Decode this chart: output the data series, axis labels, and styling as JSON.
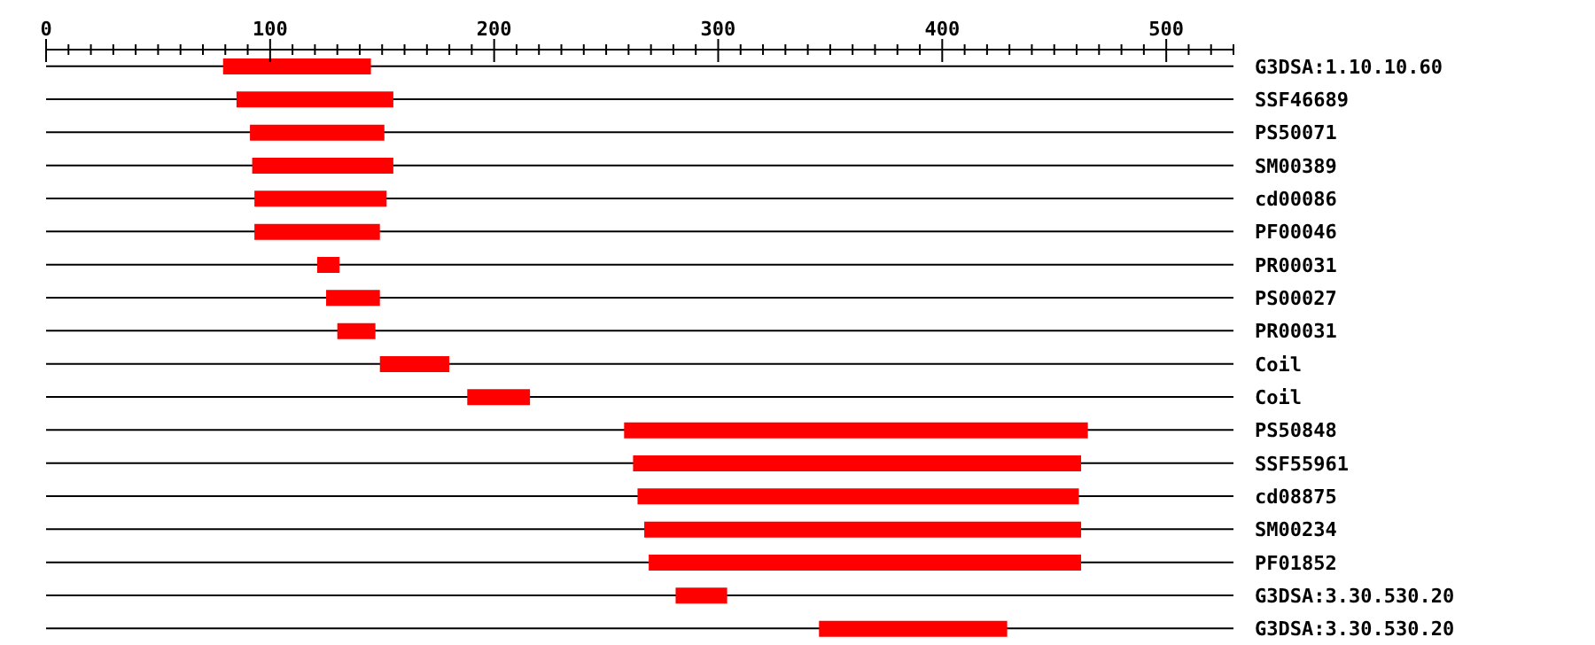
{
  "chart_data": {
    "type": "bar",
    "orientation": "horizontal",
    "grid": "y",
    "categories": [
      "G3DSA:1.10.10.60",
      "SSF46689",
      "PS50071",
      "SM00389",
      "cd00086",
      "PF00046",
      "PR00031",
      "PS00027",
      "PR00031",
      "Coil",
      "Coil",
      "PS50848",
      "SSF55961",
      "cd08875",
      "SM00234",
      "PF01852",
      "G3DSA:3.30.530.20",
      "G3DSA:3.30.530.20"
    ],
    "base": [
      79,
      85,
      91,
      92,
      93,
      93,
      121,
      125,
      130,
      149,
      188,
      258,
      262,
      264,
      267,
      269,
      281,
      345
    ],
    "values": [
      66,
      70,
      60,
      63,
      59,
      56,
      10,
      24,
      17,
      31,
      28,
      207,
      200,
      197,
      195,
      193,
      23,
      84
    ],
    "color": "#ff0000",
    "xlim": [
      0,
      530
    ],
    "xticks": [
      0,
      {
        "value": 10,
        "label": null
      },
      {
        "value": 20,
        "label": null
      },
      {
        "value": 30,
        "label": null
      },
      {
        "value": 40,
        "label": null
      },
      {
        "value": 50,
        "label": null
      },
      {
        "value": 60,
        "label": null
      },
      {
        "value": 70,
        "label": null
      },
      {
        "value": 80,
        "label": null
      },
      {
        "value": 90,
        "label": null
      },
      100,
      {
        "value": 110,
        "label": null
      },
      {
        "value": 120,
        "label": null
      },
      {
        "value": 130,
        "label": null
      },
      {
        "value": 140,
        "label": null
      },
      {
        "value": 150,
        "label": null
      },
      {
        "value": 160,
        "label": null
      },
      {
        "value": 170,
        "label": null
      },
      {
        "value": 180,
        "label": null
      },
      {
        "value": 190,
        "label": null
      },
      200,
      {
        "value": 210,
        "label": null
      },
      {
        "value": 220,
        "label": null
      },
      {
        "value": 230,
        "label": null
      },
      {
        "value": 240,
        "label": null
      },
      {
        "value": 250,
        "label": null
      },
      {
        "value": 260,
        "label": null
      },
      {
        "value": 270,
        "label": null
      },
      {
        "value": 280,
        "label": null
      },
      {
        "value": 290,
        "label": null
      },
      300,
      {
        "value": 310,
        "label": null
      },
      {
        "value": 320,
        "label": null
      },
      {
        "value": 330,
        "label": null
      },
      {
        "value": 340,
        "label": null
      },
      {
        "value": 350,
        "label": null
      },
      {
        "value": 360,
        "label": null
      },
      {
        "value": 370,
        "label": null
      },
      {
        "value": 380,
        "label": null
      },
      {
        "value": 390,
        "label": null
      },
      400,
      {
        "value": 410,
        "label": null
      },
      {
        "value": 420,
        "label": null
      },
      {
        "value": 430,
        "label": null
      },
      {
        "value": 440,
        "label": null
      },
      {
        "value": 450,
        "label": null
      },
      {
        "value": 460,
        "label": null
      },
      {
        "value": 470,
        "label": null
      },
      {
        "value": 480,
        "label": null
      },
      {
        "value": 490,
        "label": null
      },
      500,
      {
        "value": 510,
        "label": null
      },
      {
        "value": 520,
        "label": null
      },
      {
        "value": 530,
        "label": null
      }
    ]
  }
}
